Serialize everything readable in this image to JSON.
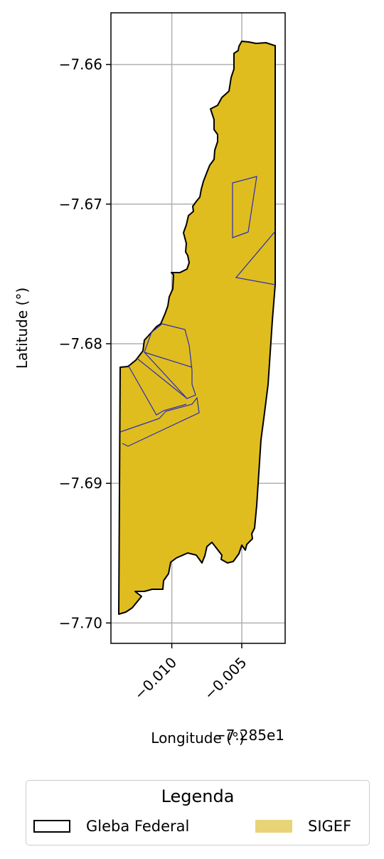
{
  "map": {
    "xlabel": "Longitude (°)",
    "ylabel": "Latitude (°)",
    "x_offset_label": "−7.285e1",
    "x_ticks": [
      {
        "value": -0.01,
        "label": "−0.010"
      },
      {
        "value": -0.005,
        "label": "−0.005"
      }
    ],
    "y_ticks": [
      {
        "value": -7.66,
        "label": "−7.66"
      },
      {
        "value": -7.67,
        "label": "−7.67"
      },
      {
        "value": -7.68,
        "label": "−7.68"
      },
      {
        "value": -7.69,
        "label": "−7.69"
      },
      {
        "value": -7.7,
        "label": "−7.70"
      }
    ],
    "xlim": [
      -0.01435,
      -0.0019
    ],
    "ylim": [
      -7.70146,
      -7.6563
    ],
    "grid": true
  },
  "legend": {
    "title": "Legenda",
    "entries": [
      {
        "label": "Gleba Federal",
        "type": "outline",
        "color": "#000000"
      },
      {
        "label": "SIGEF",
        "type": "fill",
        "color": "#e8d477"
      }
    ]
  },
  "colors": {
    "gleba_fill": "#dfbd1f",
    "gleba_edge": "#000000",
    "sigef_edge": "#2b2bb8"
  }
}
